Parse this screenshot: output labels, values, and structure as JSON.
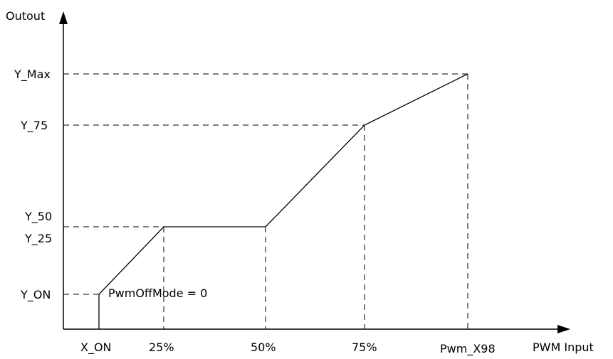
{
  "axes": {
    "y_label": "Outout",
    "x_label": "PWM Input"
  },
  "y_ticks": {
    "max": "Y_Max",
    "y75": "Y_75",
    "y50": "Y_50",
    "y25": "Y_25",
    "on": "Y_ON"
  },
  "x_ticks": {
    "on": "X_ON",
    "p25": "25%",
    "p50": "50%",
    "p75": "75%",
    "max": "Pwm_X98"
  },
  "annotation": "PwmOffMode = 0"
}
